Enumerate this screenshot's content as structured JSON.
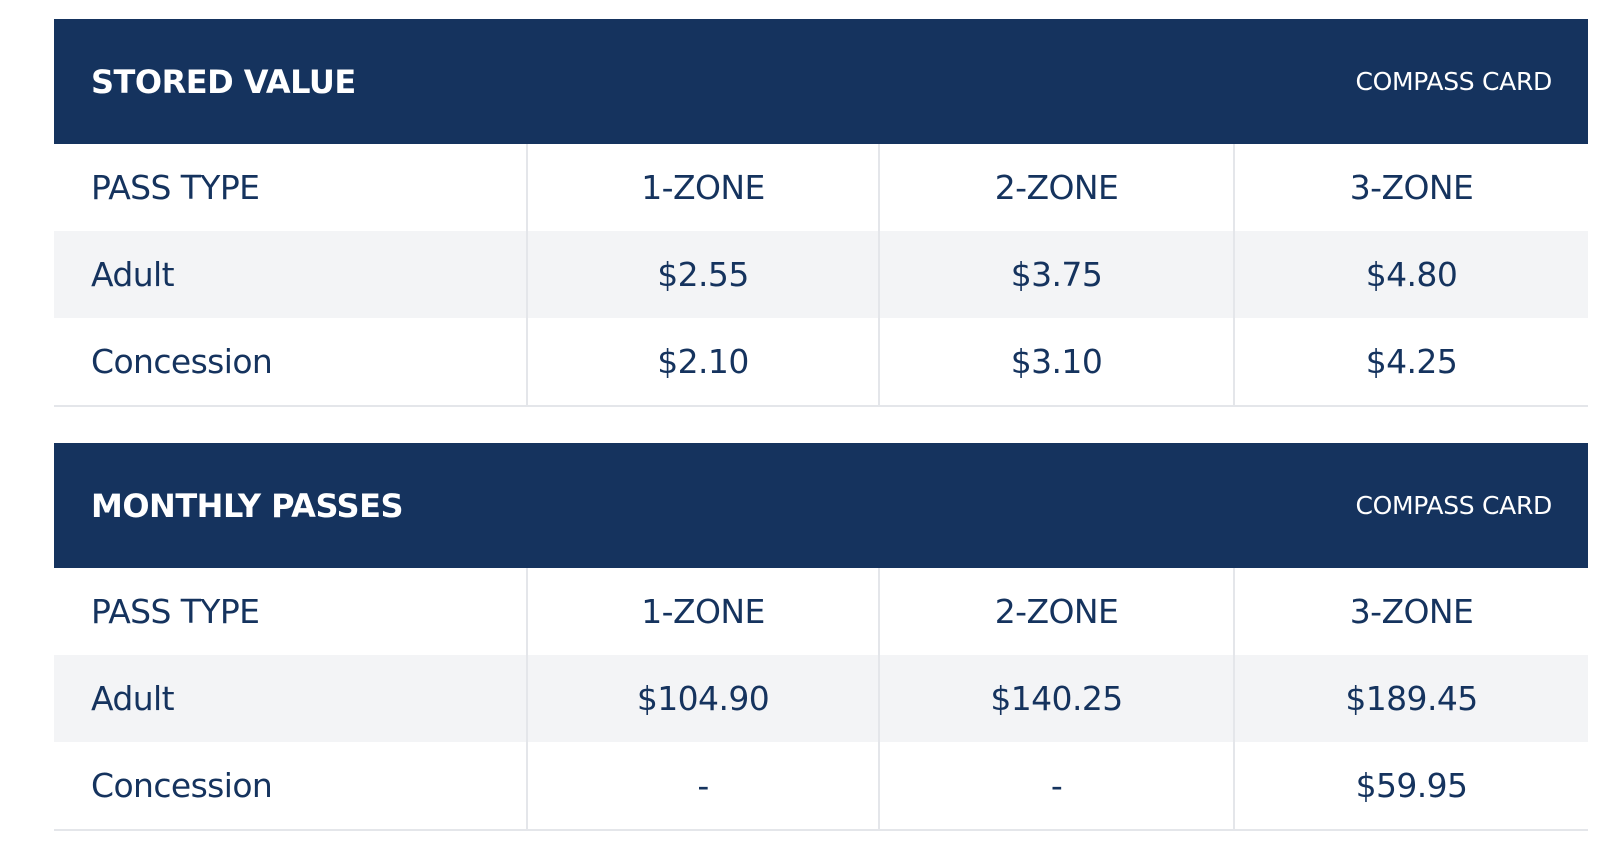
{
  "tables": [
    {
      "title": "STORED VALUE",
      "tag": "COMPASS CARD",
      "columns": [
        "PASS TYPE",
        "1-ZONE",
        "2-ZONE",
        "3-ZONE"
      ],
      "rows": [
        [
          "Adult",
          "$2.55",
          "$3.75",
          "$4.80"
        ],
        [
          "Concession",
          "$2.10",
          "$3.10",
          "$4.25"
        ]
      ]
    },
    {
      "title": "MONTHLY PASSES",
      "tag": "COMPASS CARD",
      "columns": [
        "PASS TYPE",
        "1-ZONE",
        "2-ZONE",
        "3-ZONE"
      ],
      "rows": [
        [
          "Adult",
          "$104.90",
          "$140.25",
          "$189.45"
        ],
        [
          "Concession",
          "-",
          "-",
          "$59.95"
        ]
      ]
    }
  ],
  "colors": {
    "header_background": "#15335e",
    "header_text": "#ffffff",
    "body_text": "#15335e",
    "shaded_row": "#f3f4f6",
    "divider": "#e4e6ea"
  }
}
